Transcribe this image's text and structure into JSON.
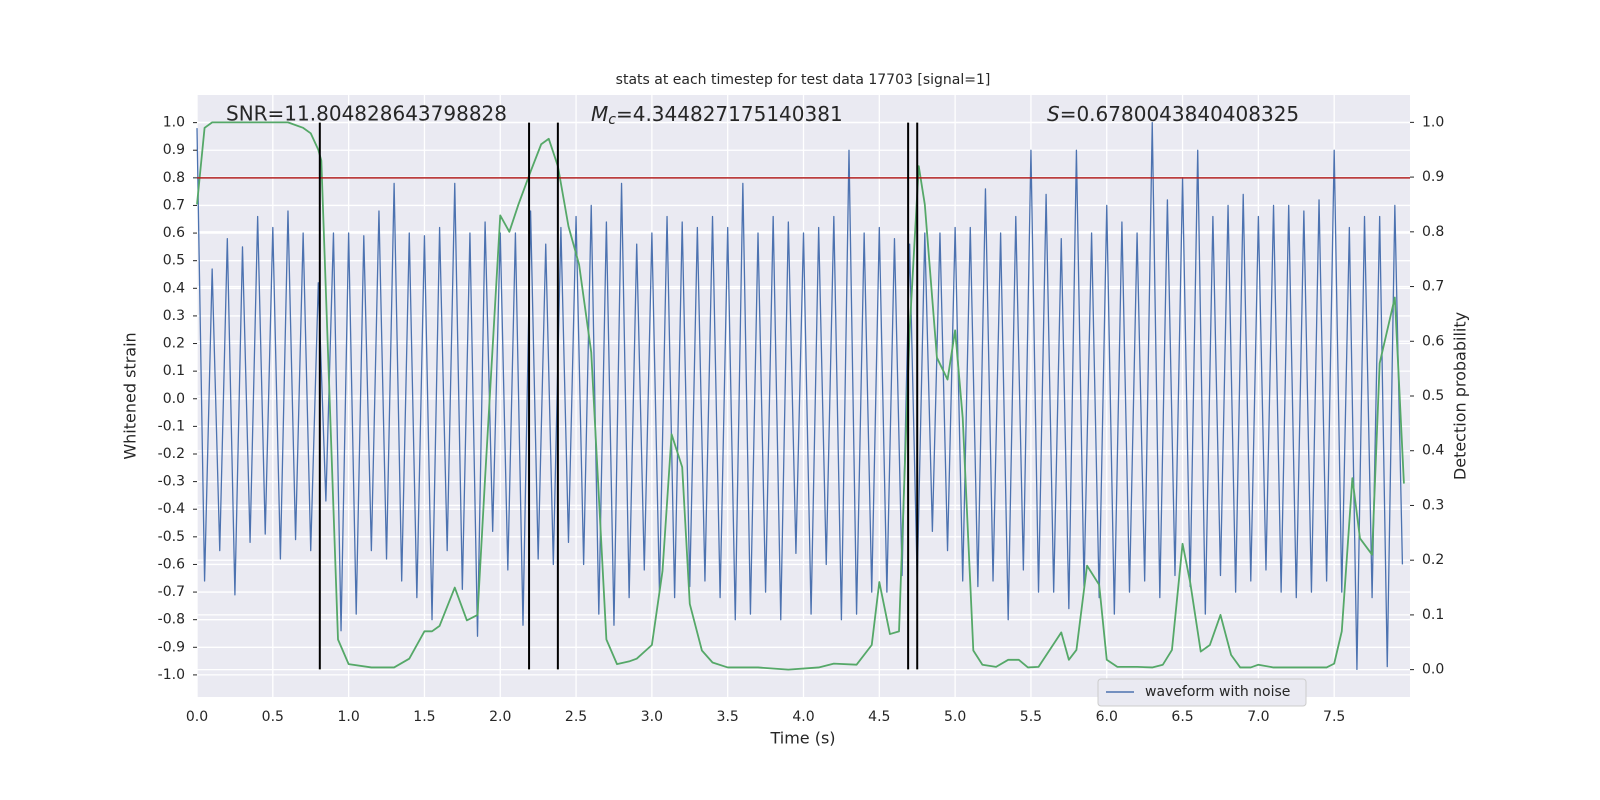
{
  "chart_data": {
    "type": "line",
    "title": "stats at each timestep for test data 17703 [signal=1]",
    "xlabel": "Time (s)",
    "ylabel": "Whitened strain",
    "y2label": "Detection probability",
    "annotations": [
      {
        "text": "SNR=11.804828643798828"
      },
      {
        "symbol": "M",
        "subscript": "c",
        "text": "=4.344827175140381"
      },
      {
        "symbol": "S",
        "text": "=0.6780043840408325"
      }
    ],
    "xlim": [
      0,
      8
    ],
    "ylim": [
      -1.08,
      1.1
    ],
    "y2lim": [
      -0.05,
      1.05
    ],
    "xticks": [
      {
        "value": 0,
        "label": "0.0"
      },
      0.5,
      {
        "value": 1,
        "label": "1.0"
      },
      1.5,
      {
        "value": 2,
        "label": "2.0"
      },
      2.5,
      {
        "value": 3,
        "label": "3.0"
      },
      3.5,
      {
        "value": 4,
        "label": "4.0"
      },
      4.5,
      {
        "value": 5,
        "label": "5.0"
      },
      5.5,
      {
        "value": 6,
        "label": "6.0"
      },
      6.5,
      {
        "value": 7,
        "label": "7.0"
      },
      7.5
    ],
    "yticks": [
      {
        "value": -1,
        "label": "-1.0"
      },
      -0.9,
      -0.8,
      -0.7,
      -0.6,
      -0.5,
      -0.4,
      -0.3,
      -0.2,
      -0.1,
      {
        "value": 0,
        "label": "0.0"
      },
      0.1,
      0.2,
      0.3,
      0.4,
      0.5,
      0.6,
      0.7,
      0.8,
      0.9,
      {
        "value": 1,
        "label": "1.0"
      }
    ],
    "y2ticks": [
      {
        "value": 0,
        "label": "0.0"
      },
      0.1,
      0.2,
      0.3,
      0.4,
      0.5,
      0.6,
      0.7,
      0.8,
      0.9,
      {
        "value": 1,
        "label": "1.0"
      }
    ],
    "grid": true,
    "legend": "lower right",
    "hline": {
      "y": 0.8,
      "color": "#b22222"
    },
    "vlines": {
      "x": [
        0.81,
        2.19,
        2.38,
        4.69,
        4.75
      ],
      "ymin": -0.98,
      "ymax": 1.0,
      "color": "#000000"
    },
    "series": [
      {
        "name": "waveform with noise",
        "color": "#4c72b0",
        "x": [
          0,
          0.05,
          0.1,
          0.15,
          0.2,
          0.25,
          0.3,
          0.35,
          0.4,
          0.45,
          0.5,
          0.55,
          0.6,
          0.65,
          0.7,
          0.75,
          0.8,
          0.85,
          0.9,
          0.95,
          1,
          1.05,
          1.1,
          1.15,
          1.2,
          1.25,
          1.3,
          1.35,
          1.4,
          1.45,
          1.5,
          1.55,
          1.6,
          1.65,
          1.7,
          1.75,
          1.8,
          1.85,
          1.9,
          1.95,
          2,
          2.05,
          2.1,
          2.15,
          2.2,
          2.25,
          2.3,
          2.35,
          2.4,
          2.45,
          2.5,
          2.55,
          2.6,
          2.65,
          2.7,
          2.75,
          2.8,
          2.85,
          2.9,
          2.95,
          3,
          3.05,
          3.1,
          3.15,
          3.2,
          3.25,
          3.3,
          3.35,
          3.4,
          3.45,
          3.5,
          3.55,
          3.6,
          3.65,
          3.7,
          3.75,
          3.8,
          3.85,
          3.9,
          3.95,
          4,
          4.05,
          4.1,
          4.15,
          4.2,
          4.25,
          4.3,
          4.35,
          4.4,
          4.45,
          4.5,
          4.55,
          4.6,
          4.65,
          4.7,
          4.75,
          4.8,
          4.85,
          4.9,
          4.95,
          5,
          5.05,
          5.1,
          5.15,
          5.2,
          5.25,
          5.3,
          5.35,
          5.4,
          5.45,
          5.5,
          5.55,
          5.6,
          5.65,
          5.7,
          5.75,
          5.8,
          5.85,
          5.9,
          5.95,
          6,
          6.05,
          6.1,
          6.15,
          6.2,
          6.25,
          6.3,
          6.35,
          6.4,
          6.45,
          6.5,
          6.55,
          6.6,
          6.65,
          6.7,
          6.75,
          6.8,
          6.85,
          6.9,
          6.95,
          7,
          7.05,
          7.1,
          7.15,
          7.2,
          7.25,
          7.3,
          7.35,
          7.4,
          7.45,
          7.5,
          7.55,
          7.6,
          7.65,
          7.7,
          7.75,
          7.8,
          7.85,
          7.9,
          7.95
        ],
        "values": [
          0.98,
          -0.66,
          0.47,
          -0.55,
          0.58,
          -0.71,
          0.55,
          -0.52,
          0.66,
          -0.49,
          0.62,
          -0.58,
          0.68,
          -0.51,
          0.6,
          -0.55,
          0.42,
          -0.37,
          0.6,
          -0.84,
          0.6,
          -0.78,
          0.59,
          -0.55,
          0.68,
          -0.58,
          0.78,
          -0.66,
          0.6,
          -0.72,
          0.59,
          -0.8,
          0.62,
          -0.55,
          0.78,
          -0.69,
          0.6,
          -0.86,
          0.64,
          -0.48,
          0.6,
          -0.62,
          0.6,
          -0.82,
          0.68,
          -0.58,
          0.56,
          -0.6,
          0.62,
          -0.52,
          0.66,
          -0.6,
          0.7,
          -0.78,
          0.64,
          -0.82,
          0.78,
          -0.72,
          0.56,
          -0.62,
          0.6,
          -0.7,
          0.66,
          -0.72,
          0.64,
          -0.68,
          0.62,
          -0.66,
          0.66,
          -0.72,
          0.62,
          -0.8,
          0.78,
          -0.78,
          0.6,
          -0.7,
          0.66,
          -0.8,
          0.64,
          -0.56,
          0.6,
          -0.78,
          0.62,
          -0.6,
          0.66,
          -0.8,
          0.9,
          -0.78,
          0.6,
          -0.7,
          0.62,
          -0.7,
          0.58,
          -0.64,
          0.56,
          -0.66,
          0.6,
          -0.48,
          0.6,
          -0.55,
          0.62,
          -0.66,
          0.62,
          -0.68,
          0.76,
          -0.66,
          0.6,
          -0.8,
          0.66,
          -0.62,
          0.9,
          -0.7,
          0.74,
          -0.7,
          0.58,
          -0.76,
          0.9,
          -0.68,
          0.6,
          -0.72,
          0.7,
          -0.78,
          0.64,
          -0.7,
          0.6,
          -0.66,
          1.0,
          -0.72,
          0.72,
          -0.64,
          0.8,
          -0.68,
          0.9,
          -0.78,
          0.66,
          -0.64,
          0.7,
          -0.7,
          0.74,
          -0.66,
          0.66,
          -0.62,
          0.7,
          -0.7,
          0.7,
          -0.72,
          0.68,
          -0.7,
          0.72,
          -0.66,
          0.9,
          -0.7,
          0.62,
          -0.98,
          0.66,
          -0.72,
          0.66,
          -0.97,
          0.7,
          -0.6
        ]
      },
      {
        "color": "#55a868",
        "axis": "y2",
        "x": [
          0,
          0.05,
          0.1,
          0.6,
          0.7,
          0.75,
          0.8,
          0.82,
          0.93,
          1.0,
          1.15,
          1.3,
          1.4,
          1.5,
          1.55,
          1.6,
          1.7,
          1.78,
          1.85,
          1.9,
          2.0,
          2.06,
          2.12,
          2.2,
          2.27,
          2.32,
          2.38,
          2.45,
          2.52,
          2.6,
          2.7,
          2.77,
          2.85,
          2.9,
          3.0,
          3.07,
          3.13,
          3.2,
          3.25,
          3.33,
          3.4,
          3.5,
          3.7,
          3.9,
          4.1,
          4.2,
          4.35,
          4.45,
          4.5,
          4.57,
          4.63,
          4.7,
          4.76,
          4.8,
          4.88,
          4.95,
          5.0,
          5.05,
          5.12,
          5.18,
          5.27,
          5.35,
          5.42,
          5.48,
          5.55,
          5.7,
          5.75,
          5.8,
          5.87,
          5.95,
          6.0,
          6.07,
          6.2,
          6.3,
          6.37,
          6.43,
          6.5,
          6.55,
          6.62,
          6.68,
          6.75,
          6.82,
          6.88,
          6.95,
          7.0,
          7.1,
          7.3,
          7.45,
          7.5,
          7.55,
          7.62,
          7.67,
          7.75,
          7.8,
          7.9,
          7.96
        ],
        "values": [
          0.85,
          0.99,
          1.0,
          1.0,
          0.99,
          0.98,
          0.95,
          0.93,
          0.055,
          0.01,
          0.004,
          0.004,
          0.02,
          0.07,
          0.07,
          0.08,
          0.15,
          0.09,
          0.1,
          0.35,
          0.83,
          0.8,
          0.85,
          0.91,
          0.96,
          0.97,
          0.92,
          0.81,
          0.74,
          0.58,
          0.055,
          0.01,
          0.015,
          0.02,
          0.045,
          0.18,
          0.43,
          0.37,
          0.12,
          0.035,
          0.013,
          0.004,
          0.004,
          0.0,
          0.004,
          0.011,
          0.009,
          0.045,
          0.16,
          0.065,
          0.07,
          0.62,
          0.92,
          0.85,
          0.57,
          0.53,
          0.62,
          0.46,
          0.035,
          0.009,
          0.005,
          0.018,
          0.018,
          0.004,
          0.005,
          0.068,
          0.018,
          0.036,
          0.19,
          0.155,
          0.018,
          0.005,
          0.005,
          0.004,
          0.009,
          0.036,
          0.23,
          0.16,
          0.033,
          0.045,
          0.1,
          0.027,
          0.004,
          0.004,
          0.009,
          0.004,
          0.004,
          0.004,
          0.011,
          0.07,
          0.35,
          0.24,
          0.21,
          0.56,
          0.68,
          0.34
        ]
      }
    ]
  }
}
